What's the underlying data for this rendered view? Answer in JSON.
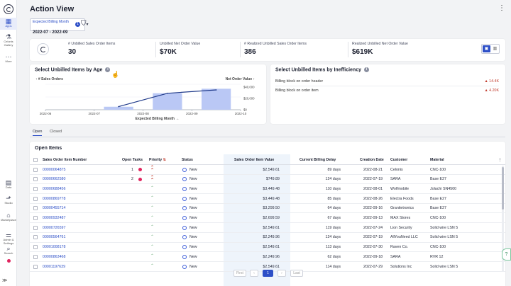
{
  "sidebar": {
    "items": [
      {
        "icon": "grid-icon",
        "glyph": "▦",
        "label": "Apps",
        "active": true
      },
      {
        "icon": "gallery-icon",
        "glyph": "⚗",
        "label": "Celonis Gallery",
        "active": false
      },
      {
        "icon": "more-icon",
        "glyph": "⋯",
        "label": "More",
        "active": false
      },
      {
        "icon": "data-icon",
        "glyph": "▤",
        "label": "Data",
        "active": false
      },
      {
        "icon": "studio-icon",
        "glyph": "⬏",
        "label": "Studio",
        "active": false
      },
      {
        "icon": "marketplace-icon",
        "glyph": "⌂",
        "label": "Marketplace",
        "active": false
      },
      {
        "icon": "admin-icon",
        "glyph": "⚌",
        "label": "Admin & Settings",
        "active": false
      },
      {
        "icon": "search-icon",
        "glyph": "⌕",
        "label": "Search",
        "active": false
      }
    ],
    "expand_glyph": "≫"
  },
  "header": {
    "title": "Action View",
    "filter": {
      "label": "Expected Billing Month",
      "value": "2022-07 - 2022-09"
    },
    "filter_count": "1"
  },
  "kpis": [
    {
      "label": "# Unbilled Sales Order Items",
      "value": "30"
    },
    {
      "label": "Unbilled Net Order Value",
      "value": "$70K"
    },
    {
      "label": "# Realized Unbilled Sales Order Items",
      "value": "386"
    },
    {
      "label": "Realized Unbilled Net Order Value",
      "value": "$619K"
    }
  ],
  "age_card": {
    "title": "Select Unbilled Items by Age"
  },
  "chart_data": {
    "type": "bar",
    "title": "Select Unbilled Items by Age",
    "categories": [
      "2022-06",
      "2022-07",
      "2022-08",
      "2022-09",
      "2022-10"
    ],
    "series": [
      {
        "name": "# Sales Orders",
        "type": "bar",
        "values": [
          0,
          2,
          11,
          14,
          0
        ]
      },
      {
        "name": "Net Order Value",
        "type": "line",
        "values": [
          null,
          5500,
          29000,
          35000,
          null
        ]
      }
    ],
    "xlabel": "Expected Billing Month →",
    "ylabel_left": "↑ # Sales Orders",
    "ylabel_right": "Net Order Value ↑",
    "right_ticks": [
      "$40,000",
      "$20,000",
      "$0"
    ],
    "right_tick_values": [
      40000,
      20000,
      0
    ],
    "ylim_left": [
      0,
      17
    ],
    "ylim_right": [
      0,
      45000
    ],
    "colors": {
      "bar": "#bac8f5",
      "line": "#1f3a8a"
    },
    "grid": true
  },
  "ineff_card": {
    "title": "Select Unbilled Items by Inefficiency",
    "rows": [
      {
        "label": "Billing block on order header",
        "value": "▲ 14.4K"
      },
      {
        "label": "Billing block on order item",
        "value": "▲ 4.20K"
      }
    ]
  },
  "tabs": [
    "Open",
    "Closed"
  ],
  "table": {
    "title": "Open Items",
    "columns": [
      "Sales Order Item Number",
      "Open Tasks",
      "Priority",
      "Status",
      "Sales Order Item Value",
      "Current Billing Delay",
      "Creation Date",
      "Customer",
      "Material"
    ],
    "rows": [
      {
        "num": "00000064875",
        "tasks": "1",
        "prio": "high",
        "status": "New",
        "value": "$2,549.61",
        "delay": "89 days",
        "date": "2022-08-21",
        "customer": "Celonis",
        "material": "CNC-100"
      },
      {
        "num": "00000662580",
        "tasks": "2",
        "prio": "high",
        "status": "New",
        "value": "$749.89",
        "delay": "124 days",
        "date": "2022-07-19",
        "customer": "SARA",
        "material": "Base E27"
      },
      {
        "num": "00000688456",
        "tasks": "",
        "prio": "low",
        "status": "New",
        "value": "$3,449.48",
        "delay": "110 days",
        "date": "2022-08-01",
        "customer": "Wolfmobile",
        "material": "Jolachi SN4500"
      },
      {
        "num": "00000869778",
        "tasks": "",
        "prio": "low",
        "status": "New",
        "value": "$3,449.48",
        "delay": "85 days",
        "date": "2022-08-26",
        "customer": "Electra Foods",
        "material": "Base E27"
      },
      {
        "num": "00000455714",
        "tasks": "",
        "prio": "low",
        "status": "New",
        "value": "$3,299.50",
        "delay": "64 days",
        "date": "2022-09-16",
        "customer": "Granitetronics",
        "material": "Base E27"
      },
      {
        "num": "00000932487",
        "tasks": "",
        "prio": "low",
        "status": "New",
        "value": "$2,699.59",
        "delay": "67 days",
        "date": "2022-09-13",
        "customer": "MAX Stores",
        "material": "CNC-100"
      },
      {
        "num": "00000726597",
        "tasks": "",
        "prio": "low",
        "status": "New",
        "value": "$2,549.61",
        "delay": "119 days",
        "date": "2022-07-24",
        "customer": "Lion Security",
        "material": "Solid wire LSN 5"
      },
      {
        "num": "00000564761",
        "tasks": "",
        "prio": "low",
        "status": "New",
        "value": "$2,249.96",
        "delay": "124 days",
        "date": "2022-07-19",
        "customer": "AllYouNeed LLC",
        "material": "Solid wire LSN 5"
      },
      {
        "num": "00001008178",
        "tasks": "",
        "prio": "low",
        "status": "New",
        "value": "$2,549.61",
        "delay": "113 days",
        "date": "2022-07-30",
        "customer": "Raven Co.",
        "material": "CNC-100"
      },
      {
        "num": "00000863468",
        "tasks": "",
        "prio": "low",
        "status": "New",
        "value": "$2,249.96",
        "delay": "62 days",
        "date": "2022-09-18",
        "customer": "SARA",
        "material": "RVR 12"
      },
      {
        "num": "00001197639",
        "tasks": "",
        "prio": "low",
        "status": "New",
        "value": "$2,549.61",
        "delay": "114 days",
        "date": "2022-07-29",
        "customer": "Solutions Inc",
        "material": "Solid wire LSN 5"
      }
    ]
  },
  "pager": {
    "prev": "Prev",
    "first": "First",
    "current": "1",
    "last": "Last"
  },
  "help_glyph": "?",
  "colors": {
    "accent": "#2d4fc7",
    "alert": "#e0245e"
  }
}
